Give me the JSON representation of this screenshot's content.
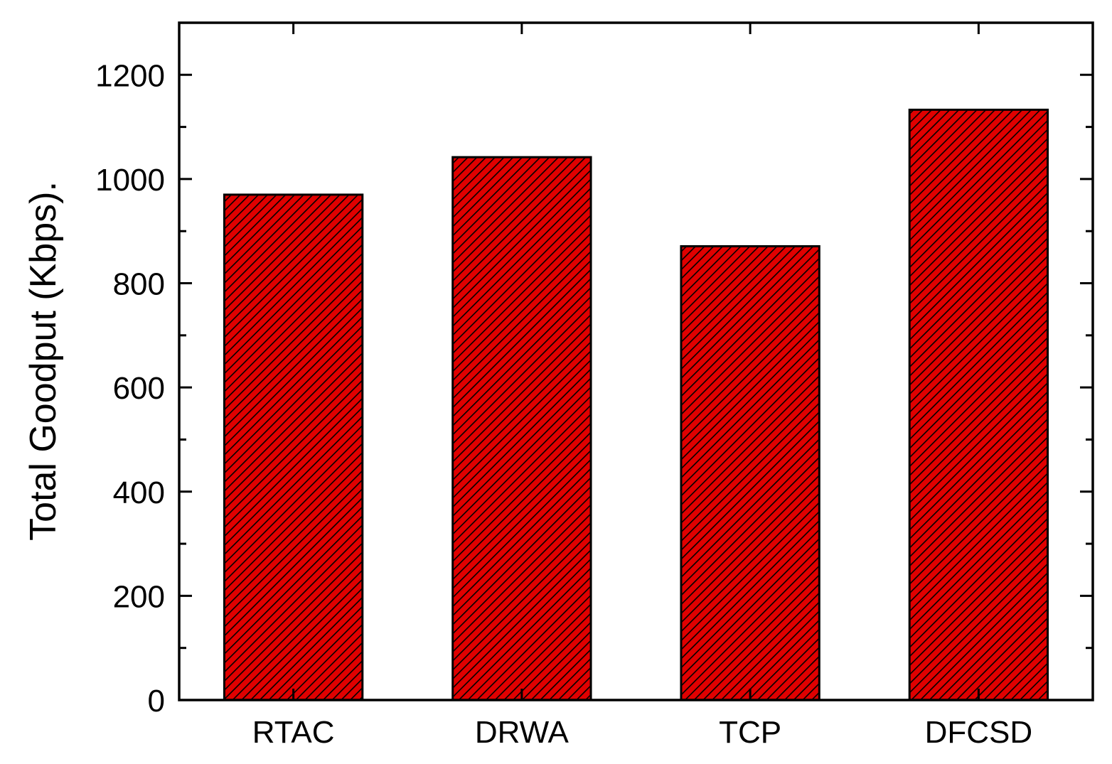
{
  "chart_data": {
    "type": "bar",
    "title": "",
    "xlabel": "",
    "ylabel": "Total Goodput (Kbps).",
    "categories": [
      "RTAC",
      "DRWA",
      "TCP",
      "DFCSD"
    ],
    "values": [
      970,
      1042,
      871,
      1133
    ],
    "ylim": [
      0,
      1300
    ],
    "yticks": [
      0,
      200,
      400,
      600,
      800,
      1000,
      1200
    ],
    "y_minor_step": 100,
    "grid": false,
    "legend": "none",
    "bar_fill": "#e00000",
    "bar_hatch": "diagonal",
    "hatch_color": "#000000",
    "axis_color": "#000000"
  }
}
